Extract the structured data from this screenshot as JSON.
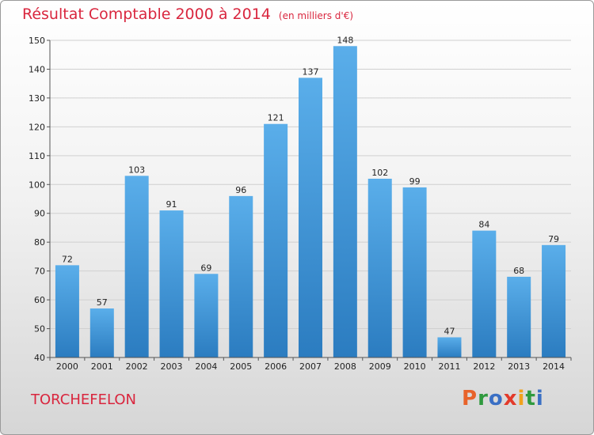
{
  "header": {
    "title": "Résultat Comptable 2000 à 2014",
    "unit": "(en milliers d'€)"
  },
  "footer": {
    "town": "TORCHEFELON",
    "logo": "Proxiti"
  },
  "colors": {
    "title": "#d9263e",
    "bar_top": "#5aaeea",
    "bar_bottom": "#2b7cc0",
    "logo_letters": [
      "#e8632a",
      "#2f9a3e",
      "#3a6fc4",
      "#e33a2a",
      "#f0a21c",
      "#2f9a3e",
      "#3a6fc4"
    ]
  },
  "chart_data": {
    "type": "bar",
    "title": "Résultat Comptable 2000 à 2014",
    "ylabel": "(en milliers d'€)",
    "categories": [
      "2000",
      "2001",
      "2002",
      "2003",
      "2004",
      "2005",
      "2006",
      "2007",
      "2008",
      "2009",
      "2010",
      "2011",
      "2012",
      "2013",
      "2014"
    ],
    "values": [
      72,
      57,
      103,
      91,
      69,
      96,
      121,
      137,
      148,
      102,
      99,
      47,
      84,
      68,
      79
    ],
    "ylim": [
      40,
      150
    ],
    "yticks": [
      40,
      50,
      60,
      70,
      80,
      90,
      100,
      110,
      120,
      130,
      140,
      150
    ],
    "grid": true
  }
}
